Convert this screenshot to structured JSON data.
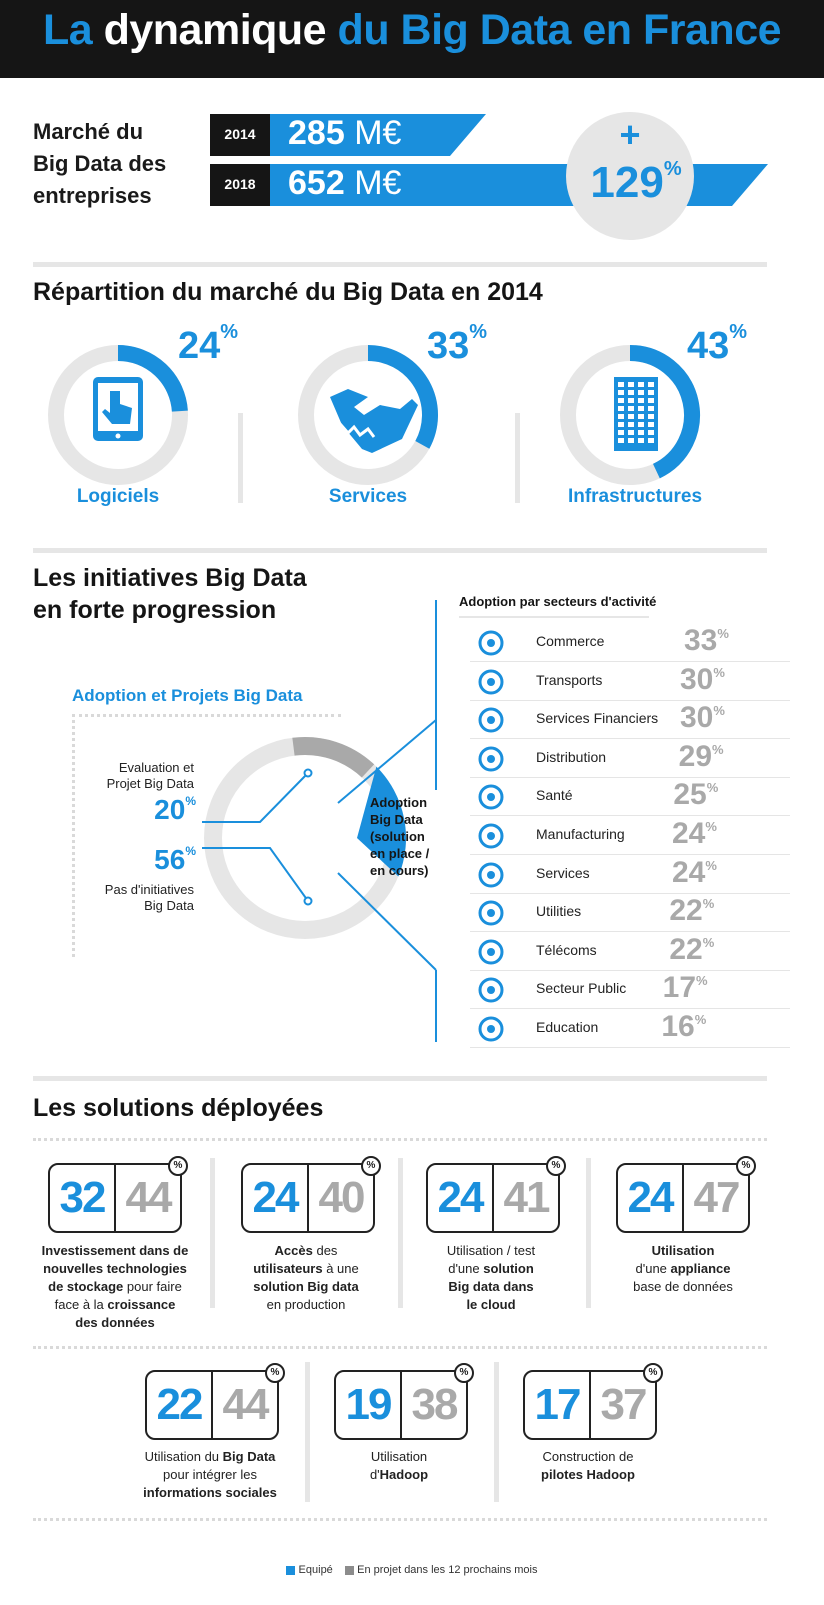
{
  "title": {
    "part1": "La",
    "part2": "dynamique",
    "part3": "du Big Data en France"
  },
  "market": {
    "label_line1": "Marché du",
    "label_line2": "Big Data des",
    "label_line3": "entreprises",
    "rows": [
      {
        "year": "2014",
        "value": "285",
        "unit": "M€"
      },
      {
        "year": "2018",
        "value": "652",
        "unit": "M€"
      }
    ],
    "growth_sign": "+",
    "growth_value": "129",
    "growth_unit": "%"
  },
  "repartition": {
    "heading": "Répartition du marché du Big Data en 2014",
    "items": [
      {
        "label": "Logiciels",
        "value": "24",
        "unit": "%",
        "fraction": 0.24,
        "icon": "tablet-touch-icon"
      },
      {
        "label": "Services",
        "value": "33",
        "unit": "%",
        "fraction": 0.33,
        "icon": "handshake-icon"
      },
      {
        "label": "Infrastructures",
        "value": "43",
        "unit": "%",
        "fraction": 0.43,
        "icon": "building-icon"
      }
    ]
  },
  "initiatives": {
    "heading_line1": "Les initiatives Big Data",
    "heading_line2": "en forte progression",
    "adoption_title": "Adoption et Projets Big Data",
    "eval_label_line1": "Evaluation et",
    "eval_label_line2": "Projet Big Data",
    "eval_value": "20",
    "none_value": "56",
    "none_label_line1": "Pas d'initiatives",
    "none_label_line2": "Big Data",
    "pct_sign": "%",
    "adoption_value": "24",
    "adoption_label_lines": [
      "Adoption",
      "Big Data",
      "(solution",
      "en place /",
      "en cours)"
    ],
    "sectors_title": "Adoption par secteurs d'activité",
    "sectors": [
      {
        "name": "Commerce",
        "value": "33",
        "icon": "cart-icon"
      },
      {
        "name": "Transports",
        "value": "30",
        "icon": "train-icon"
      },
      {
        "name": "Services Financiers",
        "value": "30",
        "icon": "euro-icon"
      },
      {
        "name": "Distribution",
        "value": "29",
        "icon": "handtruck-icon"
      },
      {
        "name": "Santé",
        "value": "25",
        "icon": "medical-kit-icon"
      },
      {
        "name": "Manufacturing",
        "value": "24",
        "icon": "factory-icon"
      },
      {
        "name": "Services",
        "value": "24",
        "icon": "handshake-icon"
      },
      {
        "name": "Utilities",
        "value": "22",
        "icon": "tools-icon"
      },
      {
        "name": "Télécoms",
        "value": "22",
        "icon": "phone-icon"
      },
      {
        "name": "Secteur Public",
        "value": "17",
        "icon": "public-building-icon"
      },
      {
        "name": "Education",
        "value": "16",
        "icon": "graduation-cap-icon"
      }
    ]
  },
  "solutions": {
    "heading": "Les solutions déployées",
    "pct_badge": "%",
    "items": [
      {
        "equipped": "32",
        "planned": "44"
      },
      {
        "equipped": "24",
        "planned": "40"
      },
      {
        "equipped": "24",
        "planned": "41"
      },
      {
        "equipped": "24",
        "planned": "47"
      },
      {
        "equipped": "22",
        "planned": "44"
      },
      {
        "equipped": "19",
        "planned": "38"
      },
      {
        "equipped": "17",
        "planned": "37"
      }
    ],
    "desc0": {
      "l1": "Investissement dans de",
      "l2": "nouvelles technologies",
      "l3a": "de stockage",
      "l3b": " pour faire",
      "l4a": "face à la ",
      "l4b": "croissance",
      "l5": "des données"
    },
    "desc1": {
      "l1a": "Accès",
      "l1b": " des",
      "l2a": "utilisateurs",
      "l2b": " à une",
      "l3": "solution Big data",
      "l4": "en production"
    },
    "desc2": {
      "l1": "Utilisation / test",
      "l2a": "d'une ",
      "l2b": "solution",
      "l3": "Big data dans",
      "l4": "le cloud"
    },
    "desc3": {
      "l1": "Utilisation",
      "l2a": "d'une ",
      "l2b": "appliance",
      "l3": "base de données"
    },
    "desc4": {
      "l1a": "Utilisation du ",
      "l1b": "Big Data",
      "l2": "pour intégrer les",
      "l3": "informations sociales"
    },
    "desc5": {
      "l1": "Utilisation",
      "l2a": "d'",
      "l2b": "Hadoop"
    },
    "desc6": {
      "l1": "Construction de",
      "l2": "pilotes Hadoop"
    }
  },
  "legend": {
    "equipped": "Equipé",
    "planned": "En projet dans les 12 prochains mois"
  },
  "colors": {
    "blue": "#1a8fdc",
    "grey": "#a9a9a9",
    "dark": "#151515",
    "light_grey": "#e6e6e6"
  },
  "chart_data": [
    {
      "type": "bar",
      "title": "Marché du Big Data des entreprises",
      "categories": [
        "2014",
        "2018"
      ],
      "values": [
        285,
        652
      ],
      "unit": "M€",
      "annotation": "+129%"
    },
    {
      "type": "pie",
      "title": "Répartition du marché du Big Data en 2014",
      "categories": [
        "Logiciels",
        "Services",
        "Infrastructures"
      ],
      "values": [
        24,
        33,
        43
      ]
    },
    {
      "type": "pie",
      "title": "Adoption et Projets Big Data",
      "categories": [
        "Evaluation et Projet Big Data",
        "Pas d'initiatives Big Data",
        "Adoption Big Data (solution en place / en cours)"
      ],
      "values": [
        20,
        56,
        24
      ]
    },
    {
      "type": "bar",
      "title": "Adoption par secteurs d'activité",
      "categories": [
        "Commerce",
        "Transports",
        "Services Financiers",
        "Distribution",
        "Santé",
        "Manufacturing",
        "Services",
        "Utilities",
        "Télécoms",
        "Secteur Public",
        "Education"
      ],
      "values": [
        33,
        30,
        30,
        29,
        25,
        24,
        24,
        22,
        22,
        17,
        16
      ]
    },
    {
      "type": "bar",
      "title": "Les solutions déployées",
      "categories": [
        "Stockage",
        "Accès utilisateurs",
        "Cloud",
        "Appliance",
        "Informations sociales",
        "Hadoop",
        "Pilotes Hadoop"
      ],
      "series": [
        {
          "name": "Equipé",
          "values": [
            32,
            24,
            24,
            24,
            22,
            19,
            17
          ]
        },
        {
          "name": "En projet dans les 12 prochains mois",
          "values": [
            44,
            40,
            41,
            47,
            44,
            38,
            37
          ]
        }
      ]
    }
  ]
}
